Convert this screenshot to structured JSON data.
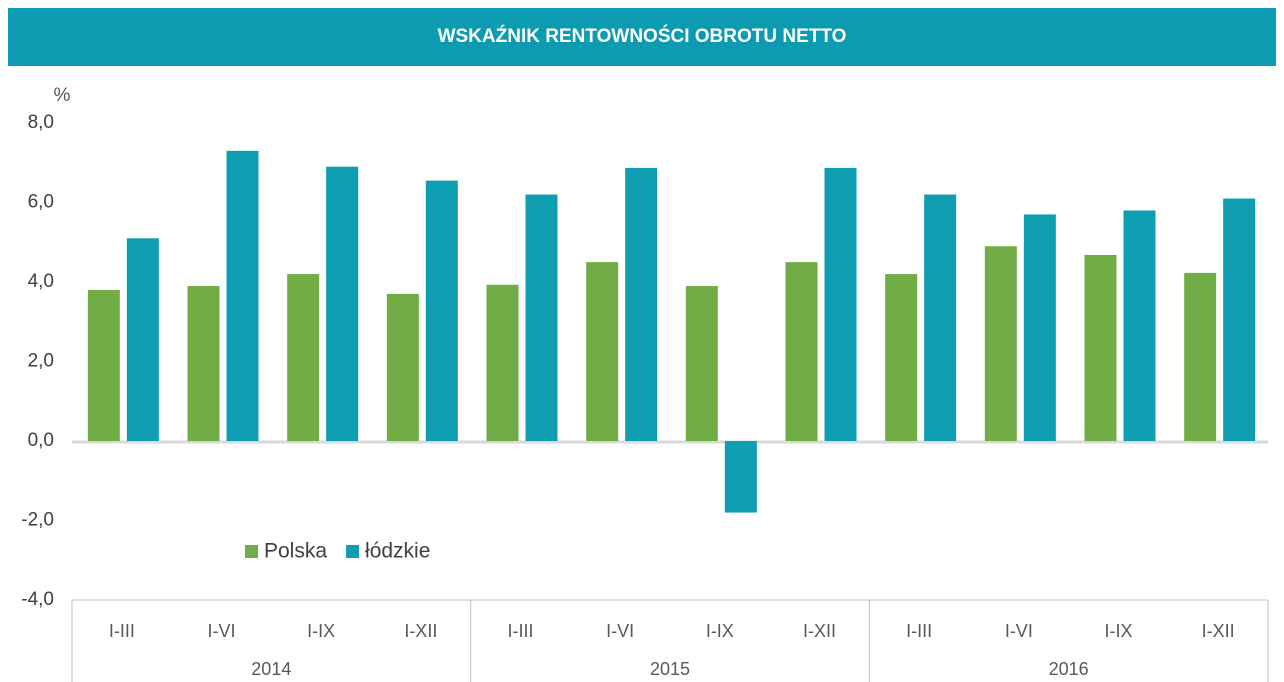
{
  "chart_data": {
    "type": "bar",
    "title": "WSKAŹNIK  RENTOWNOŚCI  OBROTU  NETTO",
    "y_unit": "%",
    "categories": [
      "I-III",
      "I-VI",
      "I-IX",
      "I-XII",
      "I-III",
      "I-VI",
      "I-IX",
      "I-XII",
      "I-III",
      "I-VI",
      "I-IX",
      "I-XII"
    ],
    "group_labels": [
      "2014",
      "2015",
      "2016"
    ],
    "series": [
      {
        "name": "Polska",
        "color": "#70ad47",
        "values": [
          3.8,
          3.9,
          4.2,
          3.7,
          3.93,
          4.5,
          3.9,
          4.5,
          4.2,
          4.9,
          4.68,
          4.23
        ]
      },
      {
        "name": "łódzkie",
        "color": "#0e9db1",
        "values": [
          5.1,
          7.3,
          6.9,
          6.55,
          6.2,
          6.87,
          -1.8,
          6.87,
          6.2,
          5.7,
          5.8,
          6.1
        ]
      }
    ],
    "ylim": [
      -4,
      8
    ],
    "yticks": [
      {
        "value": -4,
        "label": "-4,0"
      },
      {
        "value": -2,
        "label": "-2,0"
      },
      {
        "value": 0,
        "label": "0,0"
      },
      {
        "value": 2,
        "label": "2,0"
      },
      {
        "value": 4,
        "label": "4,0"
      },
      {
        "value": 6,
        "label": "6,0"
      },
      {
        "value": 8,
        "label": "8,0"
      }
    ],
    "grid": false,
    "legend": "lower left"
  }
}
